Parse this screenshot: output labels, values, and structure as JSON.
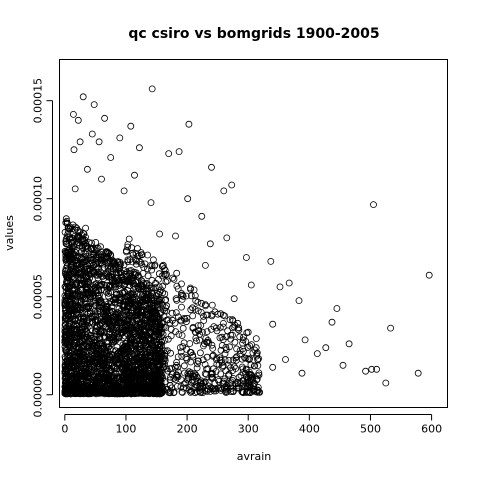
{
  "chart_data": {
    "type": "scatter",
    "title": "qc csiro vs bomgrids 1900-2005",
    "xlabel": "avrain",
    "ylabel": "values",
    "xlim": [
      -8.7,
      626
    ],
    "ylim": [
      -6.5e-06,
      0.000171
    ],
    "x_ticks": [
      0,
      100,
      200,
      300,
      400,
      500,
      600
    ],
    "x_tick_labels": [
      "0",
      "100",
      "200",
      "300",
      "400",
      "500",
      "600"
    ],
    "y_ticks": [
      0,
      5e-05,
      0.0001,
      0.00015
    ],
    "y_tick_labels": [
      "0.00000",
      "0.00005",
      "0.00010",
      "0.00015"
    ],
    "grid": false,
    "marker": "open-circle",
    "colors": {
      "points": "#000000",
      "axes": "#000000",
      "background": "#ffffff"
    },
    "series": [
      {
        "points": [
          [
            66,
            0.00017
          ],
          [
            143,
            0.000156
          ],
          [
            30,
            0.000152
          ],
          [
            48,
            0.000148
          ],
          [
            14,
            0.000143
          ],
          [
            22,
            0.00014
          ],
          [
            65,
            0.000141
          ],
          [
            108,
            0.000137
          ],
          [
            203,
            0.000138
          ],
          [
            45,
            0.000133
          ],
          [
            56,
            0.000129
          ],
          [
            25,
            0.000129
          ],
          [
            90,
            0.000131
          ],
          [
            122,
            0.000126
          ],
          [
            15,
            0.000125
          ],
          [
            75,
            0.000121
          ],
          [
            170,
            0.000123
          ],
          [
            187,
            0.000124
          ],
          [
            37,
            0.000115
          ],
          [
            240,
            0.000116
          ],
          [
            60,
            0.00011
          ],
          [
            114,
            0.000112
          ],
          [
            273,
            0.000107
          ],
          [
            260,
            0.000104
          ],
          [
            17,
            0.000105
          ],
          [
            97,
            0.000104
          ],
          [
            201,
            0.0001
          ],
          [
            141,
            9.8e-05
          ],
          [
            224,
            9.1e-05
          ],
          [
            505,
            9.7e-05
          ],
          [
            12,
            7.9e-05
          ],
          [
            34,
            8.5e-05
          ],
          [
            155,
            8.2e-05
          ],
          [
            238,
            7.7e-05
          ],
          [
            181,
            8.1e-05
          ],
          [
            265,
            8e-05
          ],
          [
            297,
            7e-05
          ],
          [
            337,
            6.8e-05
          ],
          [
            230,
            6.6e-05
          ],
          [
            183,
            6.2e-05
          ],
          [
            596,
            6.1e-05
          ],
          [
            367,
            5.7e-05
          ],
          [
            305,
            5.6e-05
          ],
          [
            352,
            5.5e-05
          ],
          [
            277,
            4.9e-05
          ],
          [
            383,
            4.8e-05
          ],
          [
            445,
            4.4e-05
          ],
          [
            533,
            3.4e-05
          ],
          [
            437,
            3.7e-05
          ],
          [
            340,
            3.6e-05
          ],
          [
            393,
            2.8e-05
          ],
          [
            465,
            2.6e-05
          ],
          [
            427,
            2.4e-05
          ],
          [
            313,
            2.4e-05
          ],
          [
            361,
            1.8e-05
          ],
          [
            413,
            2.1e-05
          ],
          [
            455,
            1.5e-05
          ],
          [
            502,
            1.3e-05
          ],
          [
            492,
            1.2e-05
          ],
          [
            510,
            1.3e-05
          ],
          [
            578,
            1.1e-05
          ],
          [
            525,
            6e-06
          ],
          [
            340,
            1.4e-05
          ],
          [
            388,
            1.1e-05
          ],
          [
            297,
            9e-06
          ],
          [
            260,
            6e-06
          ],
          [
            233,
            3e-06
          ],
          [
            205,
            4e-06
          ]
        ]
      }
    ],
    "dense_cluster": {
      "description_count": 2600,
      "x_range": [
        0,
        160
      ],
      "x_peak": 45,
      "y_range": [
        5e-07,
        9e-05
      ],
      "y_peak": 2.2e-05
    },
    "mid_cloud": {
      "count": 700,
      "x_range": [
        100,
        320
      ],
      "y_range": [
        1e-06,
        8e-05
      ]
    }
  }
}
